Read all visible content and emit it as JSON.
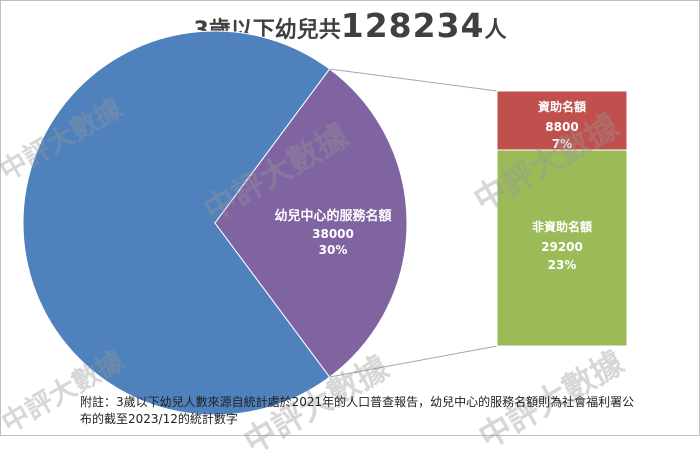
{
  "title": {
    "prefix": "3歲以下幼兒共",
    "number": "128234",
    "suffix": "人"
  },
  "watermark": "中評大數據",
  "note": "附註：3歲以下幼兒人數來源自統計處於2021年的人口普查報告，幼兒中心的服務名額則為社會福利署公布的截至2023/12的統計數字",
  "colors": {
    "total": "#4f81bd",
    "centre": "#8064a2",
    "subsidized": "#c0504d",
    "non_subsidized": "#9bbb59"
  },
  "chart_data": {
    "type": "pie",
    "title": "3歲以下幼兒共128234人",
    "total": 128234,
    "pie": {
      "slices": [
        {
          "label": "",
          "value": 90234
        },
        {
          "label": "幼兒中心的服務名額",
          "value": 38000,
          "percent": "30%"
        }
      ]
    },
    "bar_of_pie": {
      "parent": "幼兒中心的服務名額",
      "segments": [
        {
          "label": "資助名額",
          "value": 8800,
          "percent": "7%"
        },
        {
          "label": "非資助名額",
          "value": 29200,
          "percent": "23%"
        }
      ]
    }
  }
}
